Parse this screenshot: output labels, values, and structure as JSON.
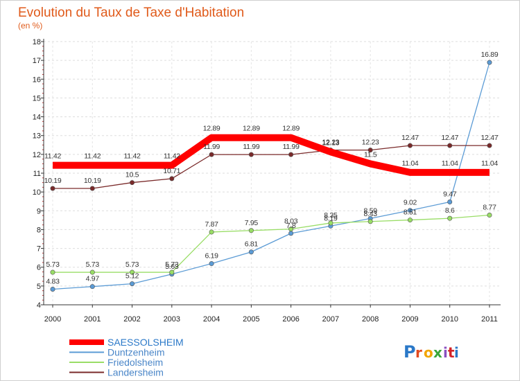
{
  "chart_data": {
    "type": "line",
    "title": "Evolution du Taux de Taxe d'Habitation",
    "subtitle": "(en %)",
    "x": [
      "2000",
      "2001",
      "2002",
      "2003",
      "2004",
      "2005",
      "2006",
      "2007",
      "2008",
      "2009",
      "2010",
      "2011"
    ],
    "ylim": [
      4,
      18
    ],
    "yticks": [
      "4",
      "5",
      "6",
      "7",
      "8",
      "9",
      "10",
      "11",
      "12",
      "13",
      "14",
      "15",
      "16",
      "17",
      "18"
    ],
    "grid": "horizontal-dashed",
    "legend_position": "bottom-left",
    "series": [
      {
        "name": "SAESSOLSHEIM",
        "color": "#ff0000",
        "values": [
          11.42,
          11.42,
          11.42,
          11.42,
          12.89,
          12.89,
          12.89,
          12.13,
          11.5,
          11.04,
          11.04,
          11.04
        ],
        "labels": [
          "11.42",
          "11.42",
          "11.42",
          "11.42",
          "12.89",
          "12.89",
          "12.89",
          "12.13",
          "11.5",
          "11.04",
          "11.04",
          "11.04"
        ]
      },
      {
        "name": "Duntzenheim",
        "color": "#5b9bd5",
        "values": [
          4.83,
          4.97,
          5.12,
          5.63,
          6.19,
          6.81,
          7.8,
          8.19,
          8.59,
          9.02,
          9.47,
          16.89
        ],
        "labels": [
          "4.83",
          "4.97",
          "5.12",
          "5.63",
          "6.19",
          "6.81",
          "7.8",
          "8.19",
          "8.59",
          "9.02",
          "9.47",
          "16.89"
        ]
      },
      {
        "name": "Friedolsheim",
        "color": "#99dd66",
        "values": [
          5.73,
          5.73,
          5.73,
          5.73,
          7.87,
          7.95,
          8.03,
          8.35,
          8.43,
          8.51,
          8.6,
          8.77
        ],
        "labels": [
          "5.73",
          "5.73",
          "5.73",
          "5.73",
          "7.87",
          "7.95",
          "8.03",
          "8.35",
          "8.43",
          "8.51",
          "8.6",
          "8.77"
        ]
      },
      {
        "name": "Landersheim",
        "color": "#7a2a2a",
        "values": [
          10.19,
          10.19,
          10.5,
          10.71,
          11.99,
          11.99,
          11.99,
          12.23,
          12.23,
          12.47,
          12.47,
          12.47
        ],
        "labels": [
          "10.19",
          "10.19",
          "10.5",
          "10.71",
          "11.99",
          "11.99",
          "11.99",
          "12.23",
          "12.23",
          "12.47",
          "12.47",
          "12.47"
        ]
      }
    ]
  },
  "logo": {
    "text": "Proxiti",
    "colors": [
      "#2a78c8",
      "#e24a1f",
      "#f2a500",
      "#3aa63a",
      "#8a4fc0",
      "#d2232a",
      "#2a78c8"
    ]
  }
}
